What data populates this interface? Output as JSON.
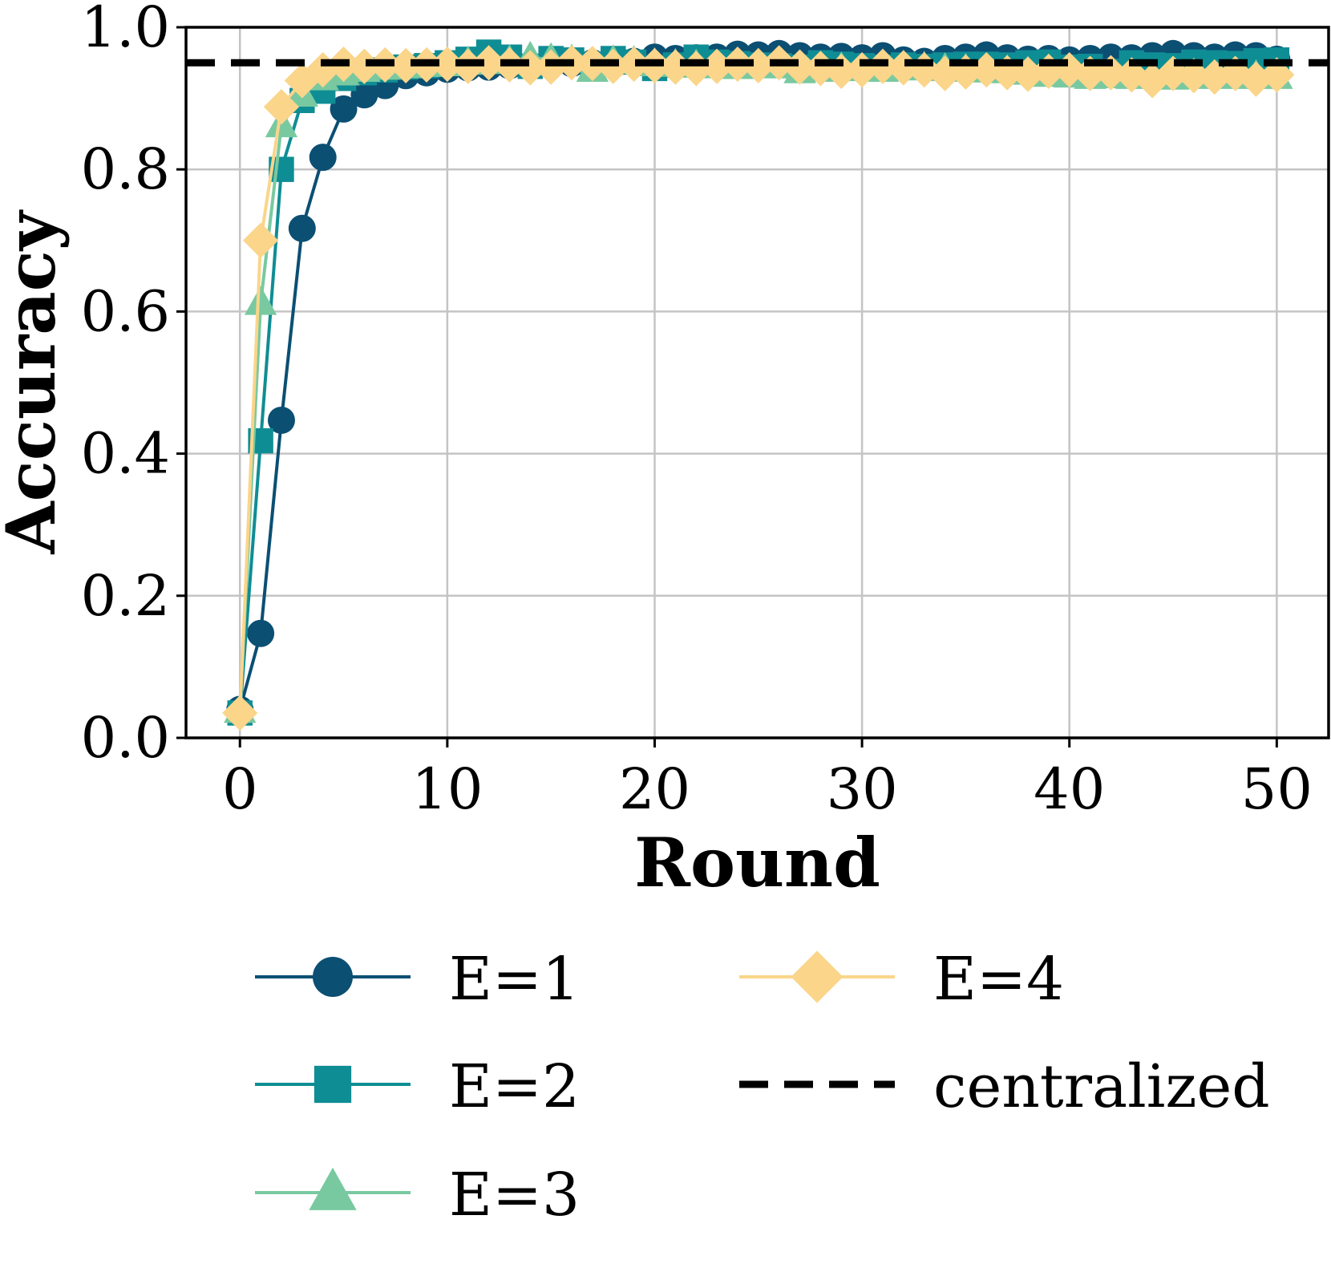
{
  "chart_data": {
    "type": "line",
    "title": "",
    "xlabel": "Round",
    "ylabel": "Accuracy",
    "xlim": [
      -2.6,
      52.5
    ],
    "ylim": [
      0.0,
      1.0
    ],
    "x_ticks": [
      0,
      10,
      20,
      30,
      40,
      50
    ],
    "x_tick_labels": [
      "0",
      "10",
      "20",
      "30",
      "40",
      "50"
    ],
    "y_ticks": [
      0.0,
      0.2,
      0.4,
      0.6,
      0.8,
      1.0
    ],
    "y_tick_labels": [
      "0.0",
      "0.2",
      "0.4",
      "0.6",
      "0.8",
      "1.0"
    ],
    "grid": true,
    "legend_position": "below",
    "series": [
      {
        "name": "E=1",
        "color": "#0b4f73",
        "marker": "circle",
        "x": [
          0,
          1,
          2,
          3,
          4,
          5,
          6,
          7,
          8,
          9,
          10,
          11,
          12,
          13,
          14,
          15,
          16,
          17,
          18,
          19,
          20,
          21,
          22,
          23,
          24,
          25,
          26,
          27,
          28,
          29,
          30,
          31,
          32,
          33,
          34,
          35,
          36,
          37,
          38,
          39,
          40,
          41,
          42,
          43,
          44,
          45,
          46,
          47,
          48,
          49,
          50
        ],
        "values": [
          0.04,
          0.147,
          0.447,
          0.717,
          0.817,
          0.885,
          0.905,
          0.918,
          0.932,
          0.936,
          0.941,
          0.943,
          0.944,
          0.946,
          0.947,
          0.948,
          0.949,
          0.95,
          0.951,
          0.952,
          0.958,
          0.956,
          0.957,
          0.958,
          0.962,
          0.961,
          0.963,
          0.96,
          0.958,
          0.959,
          0.957,
          0.96,
          0.954,
          0.952,
          0.956,
          0.958,
          0.961,
          0.957,
          0.955,
          0.956,
          0.954,
          0.956,
          0.958,
          0.957,
          0.96,
          0.963,
          0.96,
          0.958,
          0.961,
          0.96,
          0.955
        ]
      },
      {
        "name": "E=2",
        "color": "#0f8d94",
        "marker": "square",
        "x": [
          0,
          1,
          2,
          3,
          4,
          5,
          6,
          7,
          8,
          9,
          10,
          11,
          12,
          13,
          14,
          15,
          16,
          17,
          18,
          19,
          20,
          21,
          22,
          23,
          24,
          25,
          26,
          27,
          28,
          29,
          30,
          31,
          32,
          33,
          34,
          35,
          36,
          37,
          38,
          39,
          40,
          41,
          42,
          43,
          44,
          45,
          46,
          47,
          48,
          49,
          50
        ],
        "values": [
          0.035,
          0.418,
          0.8,
          0.897,
          0.91,
          0.928,
          0.936,
          0.94,
          0.944,
          0.946,
          0.95,
          0.955,
          0.965,
          0.958,
          0.945,
          0.956,
          0.954,
          0.948,
          0.956,
          0.951,
          0.942,
          0.947,
          0.958,
          0.951,
          0.949,
          0.947,
          0.946,
          0.944,
          0.95,
          0.948,
          0.946,
          0.944,
          0.947,
          0.945,
          0.947,
          0.948,
          0.948,
          0.947,
          0.95,
          0.951,
          0.944,
          0.945,
          0.938,
          0.95,
          0.947,
          0.946,
          0.951,
          0.95,
          0.949,
          0.953,
          0.954
        ]
      },
      {
        "name": "E=3",
        "color": "#79c9a0",
        "marker": "triangle",
        "x": [
          0,
          1,
          2,
          3,
          4,
          5,
          6,
          7,
          8,
          9,
          10,
          11,
          12,
          13,
          14,
          15,
          16,
          17,
          18,
          19,
          20,
          21,
          22,
          23,
          24,
          25,
          26,
          27,
          28,
          29,
          30,
          31,
          32,
          33,
          34,
          35,
          36,
          37,
          38,
          39,
          40,
          41,
          42,
          43,
          44,
          45,
          46,
          47,
          48,
          49,
          50
        ],
        "values": [
          0.038,
          0.612,
          0.862,
          0.905,
          0.928,
          0.935,
          0.94,
          0.943,
          0.945,
          0.947,
          0.948,
          0.95,
          0.951,
          0.952,
          0.957,
          0.955,
          0.953,
          0.94,
          0.952,
          0.951,
          0.948,
          0.947,
          0.946,
          0.945,
          0.944,
          0.946,
          0.945,
          0.938,
          0.94,
          0.942,
          0.941,
          0.94,
          0.942,
          0.943,
          0.941,
          0.94,
          0.939,
          0.938,
          0.936,
          0.933,
          0.932,
          0.93,
          0.931,
          0.93,
          0.931,
          0.929,
          0.93,
          0.931,
          0.93,
          0.931,
          0.93
        ]
      },
      {
        "name": "E=4",
        "color": "#fad58a",
        "marker": "diamond",
        "x": [
          0,
          1,
          2,
          3,
          4,
          5,
          6,
          7,
          8,
          9,
          10,
          11,
          12,
          13,
          14,
          15,
          16,
          17,
          18,
          19,
          20,
          21,
          22,
          23,
          24,
          25,
          26,
          27,
          28,
          29,
          30,
          31,
          32,
          33,
          34,
          35,
          36,
          37,
          38,
          39,
          40,
          41,
          42,
          43,
          44,
          45,
          46,
          47,
          48,
          49,
          50
        ],
        "values": [
          0.035,
          0.7,
          0.888,
          0.925,
          0.94,
          0.948,
          0.945,
          0.947,
          0.946,
          0.947,
          0.948,
          0.945,
          0.95,
          0.947,
          0.943,
          0.944,
          0.95,
          0.949,
          0.945,
          0.948,
          0.946,
          0.944,
          0.942,
          0.945,
          0.948,
          0.946,
          0.95,
          0.944,
          0.942,
          0.938,
          0.94,
          0.945,
          0.943,
          0.94,
          0.935,
          0.937,
          0.94,
          0.936,
          0.934,
          0.938,
          0.94,
          0.935,
          0.936,
          0.933,
          0.925,
          0.935,
          0.932,
          0.93,
          0.935,
          0.927,
          0.933
        ]
      },
      {
        "name": "centralized",
        "color": "#000000",
        "marker": "none",
        "dash": "dashed",
        "x": [
          -2.6,
          52.5
        ],
        "values": [
          0.95,
          0.95
        ]
      }
    ]
  }
}
